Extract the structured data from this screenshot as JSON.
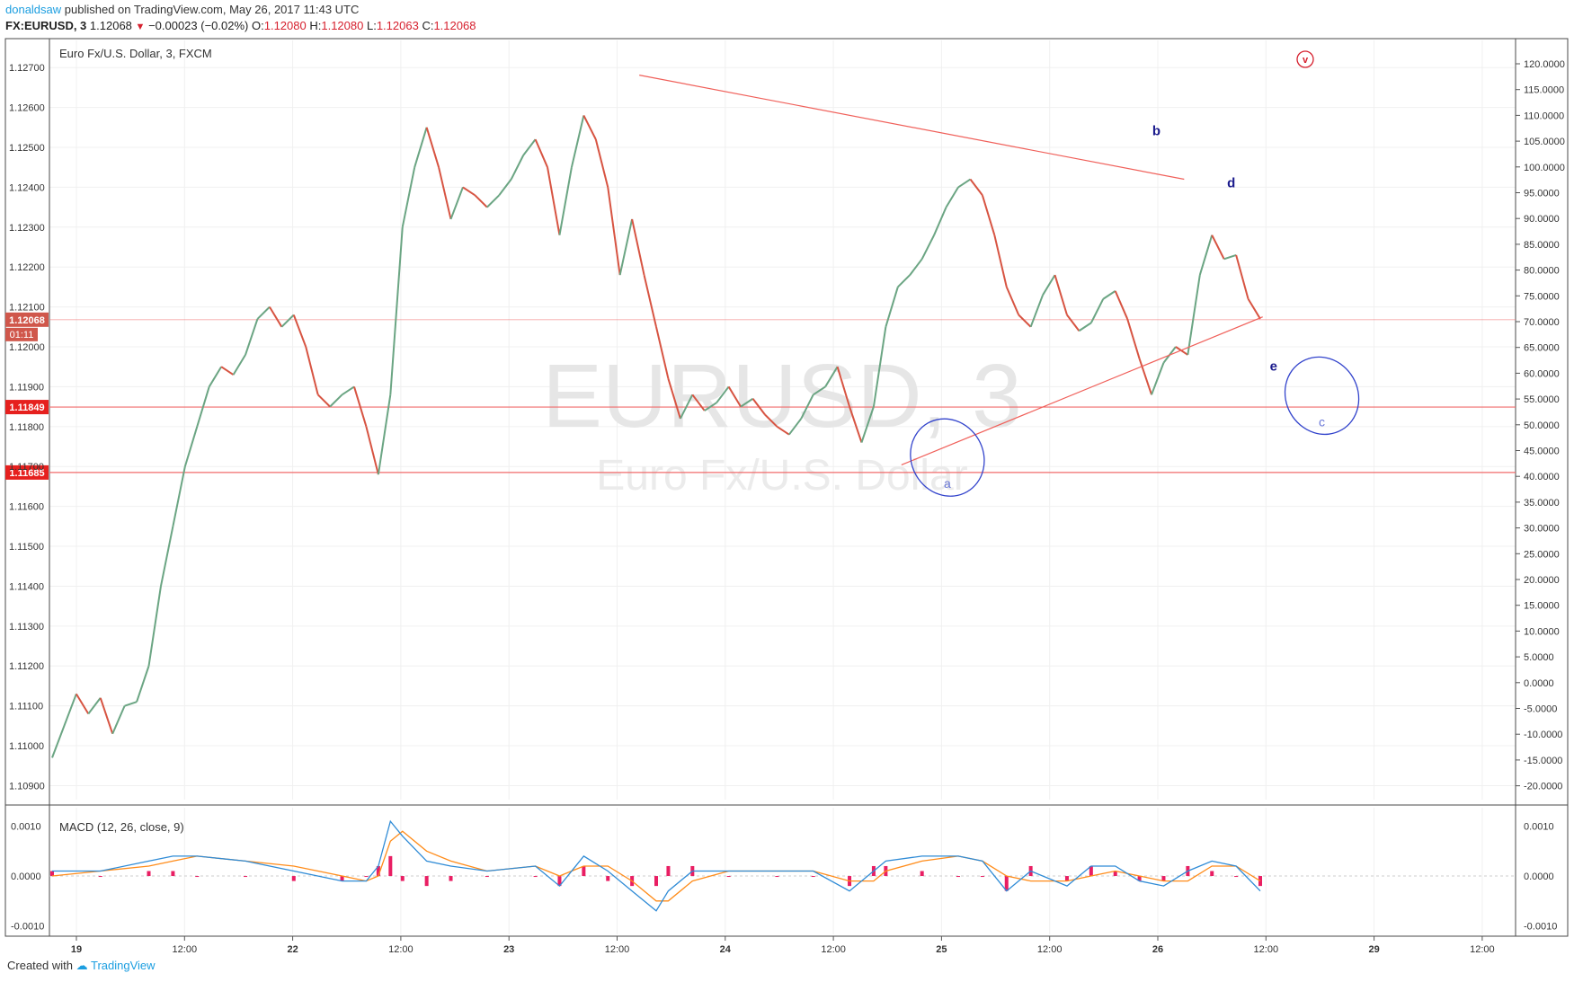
{
  "header": {
    "author": "donaldsaw",
    "published_text": "published on TradingView.com, May 26, 2017 11:43 UTC",
    "symbol_text": "FX:EURUSD, 3",
    "last_price": "1.12068",
    "change_text": "−0.00023 (−0.02%)",
    "o_label": "O:",
    "o_value": "1.12080",
    "h_label": "H:",
    "h_value": "1.12080",
    "l_label": "L:",
    "l_value": "1.12063",
    "c_label": "C:",
    "c_value": "1.12068"
  },
  "footer": {
    "created_with": "Created with",
    "brand": "TradingView"
  },
  "colors": {
    "up": "#6ba583",
    "down": "#d75442",
    "trendline": "#f0605a",
    "hline": "#f06b6b",
    "ellipse": "#3344cc",
    "wave_label": "#1a1a8c",
    "macd_line": "#2f8bd6",
    "signal_line": "#ff8c1a",
    "histogram": "#e91e63"
  },
  "chart_data": [
    {
      "type": "line",
      "title": "Euro Fx/U.S. Dollar, 3, FXCM",
      "watermark_symbol": "EURUSD, 3",
      "watermark_name": "Euro Fx/U.S. Dollar",
      "x_ticks": [
        "19",
        "12:00",
        "22",
        "12:00",
        "23",
        "12:00",
        "24",
        "12:00",
        "25",
        "12:00",
        "26",
        "12:00",
        "29",
        "12:00"
      ],
      "y_ticks_left": [
        "1.12700",
        "1.12600",
        "1.12500",
        "1.12400",
        "1.12300",
        "1.12200",
        "1.12100",
        "1.12000",
        "1.11900",
        "1.11800",
        "1.11700",
        "1.11600",
        "1.11500",
        "1.11400",
        "1.11300",
        "1.11200",
        "1.11100",
        "1.11000",
        "1.10900"
      ],
      "y_ticks_right": [
        "120.0000",
        "115.0000",
        "110.0000",
        "105.0000",
        "100.0000",
        "95.0000",
        "90.0000",
        "85.0000",
        "80.0000",
        "75.0000",
        "70.0000",
        "65.0000",
        "60.0000",
        "55.0000",
        "50.0000",
        "45.0000",
        "40.0000",
        "35.0000",
        "30.0000",
        "25.0000",
        "20.0000",
        "15.0000",
        "10.0000",
        "5.0000",
        "0.0000",
        "-5.0000",
        "-10.0000",
        "-15.0000",
        "-20.0000"
      ],
      "ylim": [
        1.10865,
        1.12768
      ],
      "series": [
        {
          "points": [
            [
              0,
              1.1097
            ],
            [
              2,
              1.1113
            ],
            [
              3,
              1.1108
            ],
            [
              4,
              1.1112
            ],
            [
              5,
              1.1103
            ],
            [
              6,
              1.111
            ],
            [
              7,
              1.1111
            ],
            [
              8,
              1.112
            ],
            [
              9,
              1.114
            ],
            [
              10,
              1.1155
            ],
            [
              11,
              1.117
            ],
            [
              12,
              1.118
            ],
            [
              13,
              1.119
            ],
            [
              14,
              1.1195
            ],
            [
              15,
              1.1193
            ],
            [
              16,
              1.1198
            ],
            [
              17,
              1.1207
            ],
            [
              18,
              1.121
            ],
            [
              19,
              1.1205
            ],
            [
              20,
              1.1208
            ],
            [
              21,
              1.12
            ],
            [
              22,
              1.1188
            ],
            [
              23,
              1.1185
            ],
            [
              24,
              1.1188
            ],
            [
              25,
              1.119
            ],
            [
              26,
              1.118
            ],
            [
              27,
              1.1168
            ],
            [
              28,
              1.1188
            ],
            [
              29,
              1.123
            ],
            [
              30,
              1.1245
            ],
            [
              31,
              1.1255
            ],
            [
              32,
              1.1245
            ],
            [
              33,
              1.1232
            ],
            [
              34,
              1.124
            ],
            [
              35,
              1.1238
            ],
            [
              36,
              1.1235
            ],
            [
              37,
              1.1238
            ],
            [
              38,
              1.1242
            ],
            [
              39,
              1.1248
            ],
            [
              40,
              1.1252
            ],
            [
              41,
              1.1245
            ],
            [
              42,
              1.1228
            ],
            [
              43,
              1.1245
            ],
            [
              44,
              1.1258
            ],
            [
              45,
              1.1252
            ],
            [
              46,
              1.124
            ],
            [
              47,
              1.1218
            ],
            [
              48,
              1.1232
            ],
            [
              49,
              1.1218
            ],
            [
              50,
              1.1205
            ],
            [
              51,
              1.1192
            ],
            [
              52,
              1.1182
            ],
            [
              53,
              1.1188
            ],
            [
              54,
              1.1184
            ],
            [
              55,
              1.1186
            ],
            [
              56,
              1.119
            ],
            [
              57,
              1.1185
            ],
            [
              58,
              1.1187
            ],
            [
              59,
              1.1183
            ],
            [
              60,
              1.118
            ],
            [
              61,
              1.1178
            ],
            [
              62,
              1.1182
            ],
            [
              63,
              1.1188
            ],
            [
              64,
              1.119
            ],
            [
              65,
              1.1195
            ],
            [
              66,
              1.1185
            ],
            [
              67,
              1.1176
            ],
            [
              68,
              1.1185
            ],
            [
              69,
              1.1205
            ],
            [
              70,
              1.1215
            ],
            [
              71,
              1.1218
            ],
            [
              72,
              1.1222
            ],
            [
              73,
              1.1228
            ],
            [
              74,
              1.1235
            ],
            [
              75,
              1.124
            ],
            [
              76,
              1.1242
            ],
            [
              77,
              1.1238
            ],
            [
              78,
              1.1228
            ],
            [
              79,
              1.1215
            ],
            [
              80,
              1.1208
            ],
            [
              81,
              1.1205
            ],
            [
              82,
              1.1213
            ],
            [
              83,
              1.1218
            ],
            [
              84,
              1.1208
            ],
            [
              85,
              1.1204
            ],
            [
              86,
              1.1206
            ],
            [
              87,
              1.1212
            ],
            [
              88,
              1.1214
            ],
            [
              89,
              1.1207
            ],
            [
              90,
              1.1197
            ],
            [
              91,
              1.1188
            ],
            [
              92,
              1.1196
            ],
            [
              93,
              1.12
            ],
            [
              94,
              1.1198
            ],
            [
              95,
              1.1218
            ],
            [
              96,
              1.1228
            ],
            [
              97,
              1.1222
            ],
            [
              98,
              1.1223
            ],
            [
              99,
              1.1212
            ],
            [
              100,
              1.1207
            ]
          ]
        },
        {
          "name": "MACD (12, 26, close, 9)",
          "ylim": [
            -0.0011,
            0.0013
          ],
          "y_ticks": [
            "0.0010",
            "0.0000",
            "-0.0010"
          ],
          "macd": [
            [
              0,
              0.0001
            ],
            [
              4,
              0.0001
            ],
            [
              8,
              0.0003
            ],
            [
              10,
              0.0004
            ],
            [
              12,
              0.0004
            ],
            [
              16,
              0.0003
            ],
            [
              20,
              0.0001
            ],
            [
              24,
              -0.0001
            ],
            [
              26,
              -0.0001
            ],
            [
              27,
              0.0002
            ],
            [
              28,
              0.0011
            ],
            [
              29,
              0.0008
            ],
            [
              31,
              0.0003
            ],
            [
              33,
              0.0002
            ],
            [
              36,
              0.0001
            ],
            [
              40,
              0.0002
            ],
            [
              42,
              -0.0002
            ],
            [
              44,
              0.0004
            ],
            [
              46,
              0.0001
            ],
            [
              48,
              -0.0003
            ],
            [
              50,
              -0.0007
            ],
            [
              51,
              -0.0003
            ],
            [
              53,
              0.0001
            ],
            [
              56,
              0.0001
            ],
            [
              60,
              0.0001
            ],
            [
              63,
              0.0001
            ],
            [
              66,
              -0.0003
            ],
            [
              68,
              0.0001
            ],
            [
              69,
              0.0003
            ],
            [
              72,
              0.0004
            ],
            [
              75,
              0.0004
            ],
            [
              77,
              0.0003
            ],
            [
              79,
              -0.0003
            ],
            [
              81,
              0.0001
            ],
            [
              84,
              -0.0002
            ],
            [
              86,
              0.0002
            ],
            [
              88,
              0.0002
            ],
            [
              90,
              -0.0001
            ],
            [
              92,
              -0.0002
            ],
            [
              94,
              0.0001
            ],
            [
              96,
              0.0003
            ],
            [
              98,
              0.0002
            ],
            [
              100,
              -0.0003
            ]
          ],
          "signal": [
            [
              0,
              0.0
            ],
            [
              4,
              0.0001
            ],
            [
              8,
              0.0002
            ],
            [
              10,
              0.0003
            ],
            [
              12,
              0.0004
            ],
            [
              16,
              0.0003
            ],
            [
              20,
              0.0002
            ],
            [
              24,
              0.0
            ],
            [
              26,
              -0.0001
            ],
            [
              27,
              0.0
            ],
            [
              28,
              0.0007
            ],
            [
              29,
              0.0009
            ],
            [
              31,
              0.0005
            ],
            [
              33,
              0.0003
            ],
            [
              36,
              0.0001
            ],
            [
              40,
              0.0002
            ],
            [
              42,
              0.0
            ],
            [
              44,
              0.0002
            ],
            [
              46,
              0.0002
            ],
            [
              48,
              -0.0001
            ],
            [
              50,
              -0.0005
            ],
            [
              51,
              -0.0005
            ],
            [
              53,
              -0.0001
            ],
            [
              56,
              0.0001
            ],
            [
              60,
              0.0001
            ],
            [
              63,
              0.0001
            ],
            [
              66,
              -0.0001
            ],
            [
              68,
              -0.0001
            ],
            [
              69,
              0.0001
            ],
            [
              72,
              0.0003
            ],
            [
              75,
              0.0004
            ],
            [
              77,
              0.0003
            ],
            [
              79,
              0.0
            ],
            [
              81,
              -0.0001
            ],
            [
              84,
              -0.0001
            ],
            [
              86,
              0.0
            ],
            [
              88,
              0.0001
            ],
            [
              90,
              0.0
            ],
            [
              92,
              -0.0001
            ],
            [
              94,
              -0.0001
            ],
            [
              96,
              0.0002
            ],
            [
              98,
              0.0002
            ],
            [
              100,
              -0.0001
            ]
          ]
        }
      ],
      "horizontal_lines": [
        {
          "price": 1.12068,
          "label": "1.12068"
        },
        {
          "price": 1.11849,
          "label": "1.11849"
        },
        {
          "price": 1.11685,
          "label": "1.11685"
        }
      ],
      "price_timer": "01:11",
      "trendlines": [
        {
          "from": [
            48.6,
            1.12681
          ],
          "to": [
            93.7,
            1.1242
          ]
        },
        {
          "from": [
            70.3,
            1.11704
          ],
          "to": [
            100.2,
            1.12075
          ]
        }
      ],
      "wave_labels": [
        {
          "text": "a",
          "x": 74.1,
          "y": 1.11655
        },
        {
          "text": "b",
          "x": 91.4,
          "y": 1.1253
        },
        {
          "text": "c",
          "x": 105.1,
          "y": 1.1181
        },
        {
          "text": "d",
          "x": 97.6,
          "y": 1.124
        },
        {
          "text": "e",
          "x": 101.1,
          "y": 1.1194
        }
      ],
      "markers": [
        "v"
      ]
    }
  ]
}
